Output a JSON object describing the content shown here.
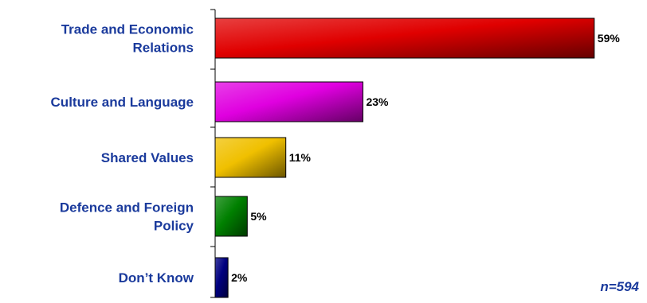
{
  "chart_data": {
    "type": "bar",
    "orientation": "horizontal",
    "categories": [
      [
        "Trade and Economic",
        "Relations"
      ],
      [
        "Culture and Language"
      ],
      [
        "Shared Values"
      ],
      [
        "Defence and Foreign",
        "Policy"
      ],
      [
        "Don’t Know"
      ]
    ],
    "values": [
      59,
      23,
      11,
      5,
      2
    ],
    "value_labels": [
      "59%",
      "23%",
      "11%",
      "5%",
      "2%"
    ],
    "bar_colors": [
      "#e00000",
      "#e000e0",
      "#f0c000",
      "#008000",
      "#000080"
    ],
    "xlim": [
      0,
      62
    ],
    "legend": "none",
    "grid": false
  },
  "note": "n=594",
  "colors": {
    "label_text": "#1a3a9c",
    "note_text": "#1a3a9c",
    "axis": "#000000"
  }
}
